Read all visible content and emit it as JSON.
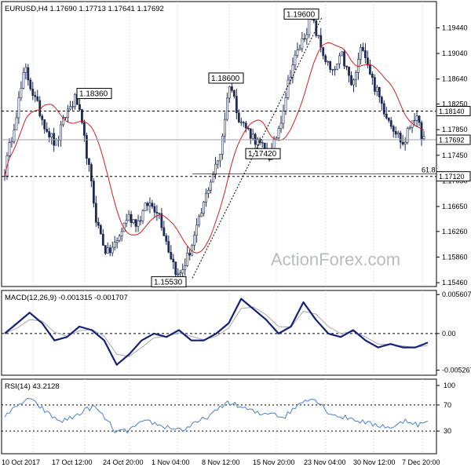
{
  "chart_data": [
    {
      "type": "candlestick",
      "title": "EURUSD,H4  1.17690 1.17713 1.17641 1.17692",
      "ylim": [
        1.154,
        1.1985
      ],
      "y_ticks": [
        1.1546,
        1.1586,
        1.1626,
        1.1665,
        1.1705,
        1.1745,
        1.1785,
        1.1825,
        1.1864,
        1.1904,
        1.1944
      ],
      "x_ticks": [
        "10 Oct 2017",
        "17 Oct 12:00",
        "24 Oct 20:00",
        "1 Nov 04:00",
        "8 Nov 12:00",
        "15 Nov 20:00",
        "23 Nov 04:00",
        "30 Nov 12:00",
        "7 Dec 20:00"
      ],
      "last_price_label": "1.17692",
      "last_price": 1.17692,
      "resistance_label": "1.18140",
      "resistance": 1.1814,
      "support_label": "1.17120",
      "support": 1.1712,
      "fib_label": "61.8",
      "annotations": [
        {
          "text": "1.18360",
          "value": 1.1836
        },
        {
          "text": "1.15530",
          "value": 1.1553
        },
        {
          "text": "1.18600",
          "value": 1.186
        },
        {
          "text": "1.17420",
          "value": 1.1742
        },
        {
          "text": "1.19600",
          "value": 1.196
        }
      ],
      "key_points": [
        1.172,
        1.18,
        1.188,
        1.183,
        1.179,
        1.176,
        1.181,
        1.1836,
        1.175,
        1.164,
        1.159,
        1.161,
        1.165,
        1.164,
        1.167,
        1.166,
        1.16,
        1.1553,
        1.159,
        1.164,
        1.17,
        1.1742,
        1.186,
        1.18,
        1.178,
        1.176,
        1.1742,
        1.18,
        1.188,
        1.192,
        1.196,
        1.191,
        1.187,
        1.19,
        1.185,
        1.192,
        1.186,
        1.182,
        1.179,
        1.176,
        1.181,
        1.177
      ],
      "watermark": "ActionForex.com"
    },
    {
      "type": "line",
      "title": "MACD(12,26,9) -0.001315 -0.001707",
      "ylim": [
        -0.006,
        0.0062
      ],
      "y_ticks_labels": [
        "0.005607",
        "0.00",
        "-0.005267"
      ],
      "y_ticks": [
        0.005607,
        0.0,
        -0.005267
      ],
      "series": [
        {
          "values": [
            0.0,
            0.0015,
            0.003,
            0.0015,
            -0.001,
            -0.0005,
            0.001,
            0.0005,
            -0.001,
            -0.0045,
            -0.003,
            -0.001,
            0.0,
            -0.0005,
            0.0005,
            -0.001,
            -0.001,
            0.0,
            0.0015,
            0.005,
            0.0035,
            0.002,
            0.0,
            0.001,
            0.0045,
            0.002,
            0.0,
            -0.0005,
            0.0005,
            -0.001,
            -0.002,
            -0.0015,
            -0.002,
            -0.002,
            -0.0013
          ]
        },
        {
          "values": [
            0.0,
            0.0008,
            0.002,
            0.0018,
            0.0002,
            -0.0004,
            0.0004,
            0.0006,
            -0.0004,
            -0.003,
            -0.0033,
            -0.002,
            -0.0006,
            -0.0004,
            0.0001,
            -0.0004,
            -0.0009,
            -0.0004,
            0.0008,
            0.0036,
            0.0038,
            0.0027,
            0.001,
            0.0009,
            0.0032,
            0.0028,
            0.001,
            0.0,
            0.0003,
            -0.0005,
            -0.0015,
            -0.0016,
            -0.0018,
            -0.002,
            -0.0017
          ]
        }
      ]
    },
    {
      "type": "line",
      "title": "RSI(14) 43.2128",
      "ylim": [
        0,
        100
      ],
      "y_ticks": [
        100,
        70,
        30
      ],
      "series": [
        {
          "values": [
            55,
            65,
            80,
            70,
            55,
            45,
            50,
            60,
            68,
            50,
            28,
            30,
            40,
            45,
            38,
            35,
            32,
            40,
            50,
            60,
            75,
            68,
            62,
            55,
            60,
            50,
            65,
            80,
            78,
            60,
            52,
            50,
            45,
            40,
            38,
            35,
            48,
            40,
            43
          ]
        }
      ]
    }
  ]
}
